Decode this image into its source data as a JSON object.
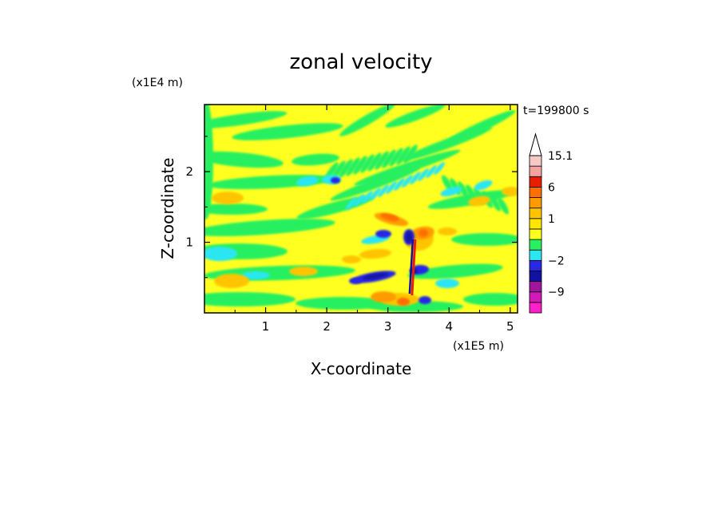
{
  "chart_data": {
    "type": "heatmap",
    "title": "zonal velocity",
    "time_label": "t=199800 s",
    "xlabel": "X-coordinate",
    "ylabel": "Z-coordinate",
    "x_unit": "(x1E5 m)",
    "y_unit": "(x1E4 m)",
    "xlim": [
      0,
      5.12
    ],
    "ylim": [
      0,
      2.95
    ],
    "x_ticks": [
      {
        "value": 1,
        "label": "1"
      },
      {
        "value": 2,
        "label": "2"
      },
      {
        "value": 3,
        "label": "3"
      },
      {
        "value": 4,
        "label": "4"
      },
      {
        "value": 5,
        "label": "5"
      }
    ],
    "y_ticks": [
      {
        "value": 1,
        "label": "1"
      },
      {
        "value": 2,
        "label": "2"
      }
    ],
    "colorbar": {
      "levels": [
        {
          "lo": -15,
          "hi": -12,
          "color": "#ff1fc8"
        },
        {
          "lo": -12,
          "hi": -9,
          "color": "#d21ab9"
        },
        {
          "lo": -9,
          "hi": -6,
          "color": "#a0149e"
        },
        {
          "lo": -6,
          "hi": -4,
          "color": "#1212a0"
        },
        {
          "lo": -4,
          "hi": -2,
          "color": "#2828e6"
        },
        {
          "lo": -2,
          "hi": -1,
          "color": "#2ce6f2"
        },
        {
          "lo": -1,
          "hi": 0,
          "color": "#28f060"
        },
        {
          "lo": 0,
          "hi": 0.5,
          "color": "#ffff20"
        },
        {
          "lo": 0.5,
          "hi": 1,
          "color": "#ffe600"
        },
        {
          "lo": 1,
          "hi": 2,
          "color": "#ffc400"
        },
        {
          "lo": 2,
          "hi": 4,
          "color": "#ff9b00"
        },
        {
          "lo": 4,
          "hi": 6,
          "color": "#ff6e00"
        },
        {
          "lo": 6,
          "hi": 9,
          "color": "#e81e00"
        },
        {
          "lo": 9,
          "hi": 12,
          "color": "#f4a4a0"
        },
        {
          "lo": 12,
          "hi": 15.1,
          "color": "#f6c8c6"
        }
      ],
      "labels": [
        {
          "value": 15.1,
          "label": "15.1"
        },
        {
          "value": 6,
          "label": "6"
        },
        {
          "value": 1,
          "label": "1"
        },
        {
          "value": -2,
          "label": "−2"
        },
        {
          "value": -9,
          "label": "−9"
        }
      ],
      "max": 15.1,
      "min": -15
    }
  }
}
